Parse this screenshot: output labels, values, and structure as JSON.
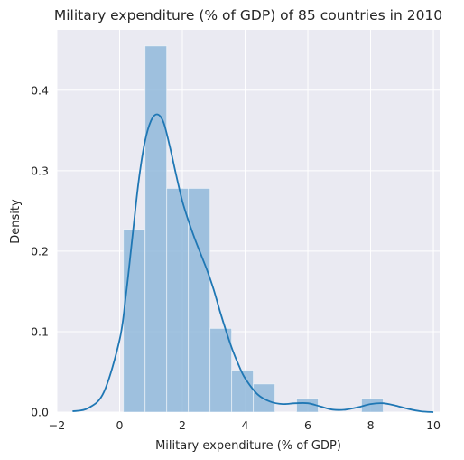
{
  "chart_data": {
    "type": "histogram",
    "title": "Military expenditure (% of GDP) of 85 countries in 2010",
    "xlabel": "Military expenditure (% of GDP)",
    "ylabel": "Density",
    "xlim": [
      -2,
      10.2
    ],
    "ylim": [
      0,
      0.475
    ],
    "x_ticks": [
      -2,
      0,
      2,
      4,
      6,
      8,
      10
    ],
    "y_ticks": [
      0.0,
      0.1,
      0.2,
      0.3,
      0.4
    ],
    "y_tick_labels": [
      "0.0",
      "0.1",
      "0.2",
      "0.3",
      "0.4"
    ],
    "grid": true,
    "background": "#eaeaf2",
    "bar_color": "#91b9db",
    "line_color": "#1f77b4",
    "histogram": {
      "bin_edges": [
        0.12,
        0.81,
        1.5,
        2.19,
        2.88,
        3.57,
        4.26,
        4.95,
        5.64,
        6.33,
        7.02,
        7.71,
        8.4
      ],
      "densities": [
        0.227,
        0.455,
        0.278,
        0.278,
        0.104,
        0.052,
        0.035,
        0.0,
        0.017,
        0.0,
        0.0,
        0.017
      ]
    },
    "kde": {
      "x": [
        -1.5,
        -1.0,
        -0.5,
        0.0,
        0.2,
        0.4,
        0.6,
        0.8,
        1.0,
        1.2,
        1.4,
        1.6,
        1.8,
        2.0,
        2.2,
        2.4,
        2.6,
        2.8,
        3.0,
        3.2,
        3.4,
        3.6,
        3.8,
        4.0,
        4.4,
        4.8,
        5.2,
        5.6,
        6.0,
        6.4,
        6.8,
        7.2,
        7.6,
        8.0,
        8.4,
        8.8,
        9.2,
        9.6,
        10.0
      ],
      "y": [
        0.001,
        0.005,
        0.025,
        0.09,
        0.145,
        0.215,
        0.285,
        0.335,
        0.362,
        0.37,
        0.36,
        0.33,
        0.295,
        0.262,
        0.237,
        0.215,
        0.195,
        0.175,
        0.152,
        0.125,
        0.1,
        0.077,
        0.058,
        0.042,
        0.022,
        0.013,
        0.01,
        0.011,
        0.011,
        0.007,
        0.003,
        0.003,
        0.006,
        0.01,
        0.011,
        0.008,
        0.004,
        0.001,
        0.0
      ]
    }
  }
}
